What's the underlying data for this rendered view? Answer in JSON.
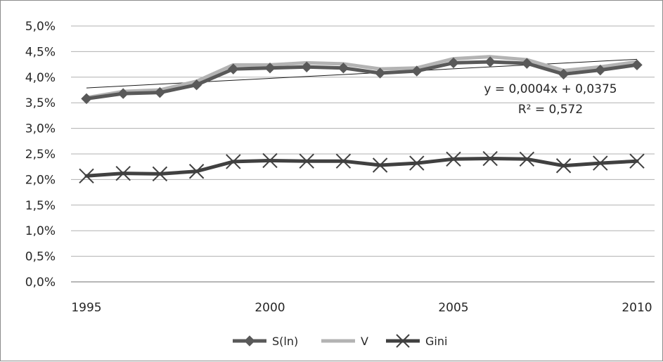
{
  "chart_data": {
    "type": "line",
    "x": [
      1995,
      1996,
      1997,
      1998,
      1999,
      2000,
      2001,
      2002,
      2003,
      2004,
      2005,
      2006,
      2007,
      2008,
      2009,
      2010
    ],
    "x_tick_labels": [
      "1995",
      "2000",
      "2005",
      "2010"
    ],
    "y_tick_labels": [
      "0,0%",
      "0,5%",
      "1,0%",
      "1,5%",
      "2,0%",
      "2,5%",
      "3,0%",
      "3,5%",
      "4,0%",
      "4,5%",
      "5,0%"
    ],
    "ylim": [
      0,
      0.05
    ],
    "grid": "horizontal",
    "legend_position": "bottom",
    "series": [
      {
        "name": "S(ln)",
        "marker": "diamond",
        "color": "#595959",
        "values": [
          0.0358,
          0.0368,
          0.037,
          0.0385,
          0.0416,
          0.0418,
          0.042,
          0.0418,
          0.0408,
          0.0412,
          0.0428,
          0.043,
          0.0427,
          0.0406,
          0.0414,
          0.0424
        ]
      },
      {
        "name": "V",
        "marker": "none",
        "color": "#b3b3b3",
        "values": [
          0.036,
          0.0372,
          0.0375,
          0.0392,
          0.0424,
          0.0424,
          0.0428,
          0.0426,
          0.0416,
          0.0418,
          0.0436,
          0.044,
          0.0434,
          0.0413,
          0.042,
          0.043
        ]
      },
      {
        "name": "Gini",
        "marker": "x",
        "color": "#404040",
        "values": [
          0.0207,
          0.0212,
          0.0211,
          0.0216,
          0.0235,
          0.0237,
          0.0236,
          0.0236,
          0.0228,
          0.0232,
          0.024,
          0.0241,
          0.024,
          0.0227,
          0.0232,
          0.0236
        ]
      }
    ],
    "trendline": {
      "of_series": "S(ln)",
      "start_value": 0.0379,
      "end_value": 0.0435,
      "equation": "y = 0,0004x + 0,0375",
      "r_squared": "R² = 0,572"
    }
  }
}
